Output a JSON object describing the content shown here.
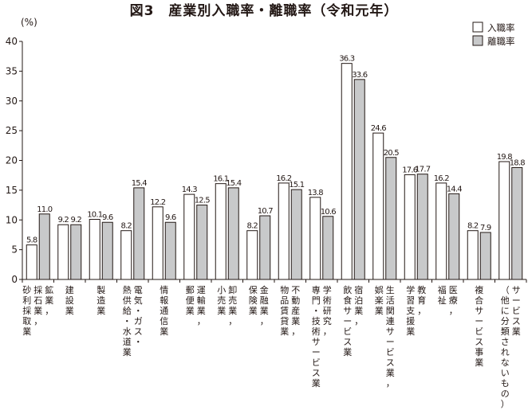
{
  "chart_data": {
    "type": "bar",
    "title": "図3　産業別入職率・離職率（令和元年）",
    "ylabel": "(%)",
    "ylim": [
      0,
      40
    ],
    "yticks": [
      0,
      5,
      10,
      15,
      20,
      25,
      30,
      35,
      40
    ],
    "grid": false,
    "legend": "top-right",
    "categories": [
      [
        "鉱業，",
        "採石業，",
        "砂利採取業"
      ],
      [
        "建設業"
      ],
      [
        "製造業"
      ],
      [
        "電気・ガス・",
        "熱供給・水道業"
      ],
      [
        "情報通信業"
      ],
      [
        "運輸業，",
        "郵便業"
      ],
      [
        "卸売業，",
        "小売業"
      ],
      [
        "金融業，",
        "保険業"
      ],
      [
        "不動産業，",
        "物品賃貸業"
      ],
      [
        "学術研究，",
        "専門・技術サービス業"
      ],
      [
        "宿泊業，",
        "飲食サービス業"
      ],
      [
        "生活関連サービス業，",
        "娯楽業"
      ],
      [
        "教育，",
        "学習支援業"
      ],
      [
        "医療，",
        "福祉"
      ],
      [
        "複合サービス事業"
      ],
      [
        "サービス業",
        "（他に分類されないもの）"
      ]
    ],
    "series": [
      {
        "name": "入職率",
        "color": "#ffffff",
        "values": [
          5.8,
          9.2,
          10.1,
          8.2,
          12.2,
          14.3,
          16.1,
          8.2,
          16.2,
          13.8,
          36.3,
          24.6,
          17.6,
          16.2,
          8.2,
          19.8
        ],
        "labels": [
          "5.8",
          "9.2",
          "10.1",
          "8.2",
          "12.2",
          "14.3",
          "16.1",
          "8.2",
          "16.2",
          "13.8",
          "36.3",
          "24.6",
          "17.6",
          "16.2",
          "8.2",
          "19.8"
        ]
      },
      {
        "name": "離職率",
        "color": "#c8c9ca",
        "values": [
          11.0,
          9.2,
          9.6,
          15.4,
          9.6,
          12.5,
          15.4,
          10.7,
          15.1,
          10.6,
          33.6,
          20.5,
          17.7,
          14.4,
          7.9,
          18.8
        ],
        "labels": [
          "11.0",
          "9.2",
          "9.6",
          "15.4",
          "9.6",
          "12.5",
          "15.4",
          "10.7",
          "15.1",
          "10.6",
          "33.6",
          "20.5",
          "17.7",
          "14.4",
          "7.9",
          "18.8"
        ]
      }
    ]
  }
}
